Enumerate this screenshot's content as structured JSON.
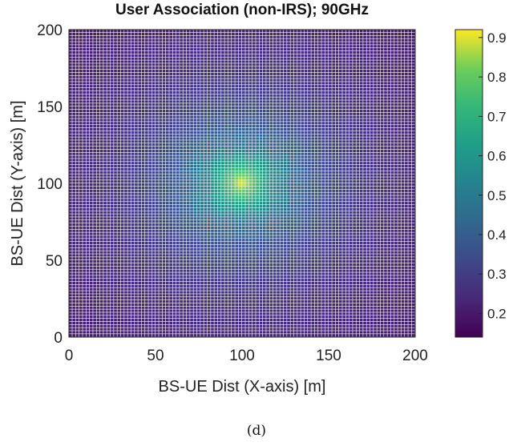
{
  "chart_data": {
    "type": "heatmap",
    "title": "User Association (non-IRS); 90GHz",
    "xlabel": "BS-UE Dist (X-axis) [m]",
    "ylabel": "BS-UE Dist (Y-axis) [m]",
    "xlim": [
      0,
      200
    ],
    "ylim": [
      0,
      200
    ],
    "xticks": [
      0,
      50,
      100,
      150,
      200
    ],
    "yticks": [
      0,
      50,
      100,
      150,
      200
    ],
    "grid_resolution_m": 2,
    "field": {
      "peak_location": [
        100,
        100
      ],
      "peak_value": 0.9,
      "edge_value": 0.15,
      "shape": "radial decay from center"
    },
    "colormap": "viridis",
    "colorbar": {
      "range": [
        0.14,
        0.92
      ],
      "ticks": [
        0.2,
        0.3,
        0.4,
        0.5,
        0.6,
        0.7,
        0.8,
        0.9
      ]
    },
    "gridlines": "white mesh lines between cells"
  },
  "caption": "(d)"
}
